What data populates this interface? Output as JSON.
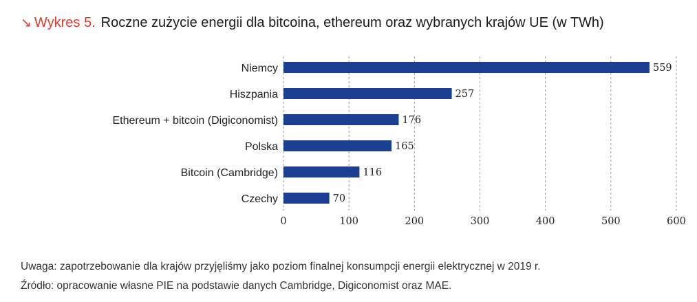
{
  "header": {
    "arrow_icon": "south-east-arrow-icon",
    "prefix": "Wykres 5.",
    "title": "Roczne zużycie energii dla bitcoina, ethereum oraz wybranych krajów UE (w TWh)"
  },
  "colors": {
    "accent": "#e03a2f",
    "bar": "#1c3f94",
    "grid": "#9a9a9a"
  },
  "chart_data": {
    "type": "bar",
    "orientation": "horizontal",
    "title": "Roczne zużycie energii dla bitcoina, ethereum oraz wybranych krajów UE (w TWh)",
    "categories": [
      "Niemcy",
      "Hiszpania",
      "Ethereum + bitcoin (Digiconomist)",
      "Polska",
      "Bitcoin (Cambridge)",
      "Czechy"
    ],
    "values": [
      559,
      257,
      176,
      165,
      116,
      70
    ],
    "value_labels": [
      "559",
      "257",
      "176",
      "165",
      "116",
      "70"
    ],
    "xticks": [
      0,
      100,
      200,
      300,
      400,
      500,
      600
    ],
    "xtick_labels": [
      "0",
      "100",
      "200",
      "300",
      "400",
      "500",
      "600"
    ],
    "xlim": [
      0,
      600
    ],
    "xlabel": "",
    "ylabel": "",
    "grid": "vertical dashed",
    "legend": "none"
  },
  "footer": {
    "note": "Uwaga: zapotrzebowanie dla krajów przyjęliśmy jako poziom finalnej konsumpcji energii elektrycznej w 2019 r.",
    "source": "Źródło: opracowanie własne PIE na podstawie danych Cambridge, Digiconomist oraz MAE."
  }
}
